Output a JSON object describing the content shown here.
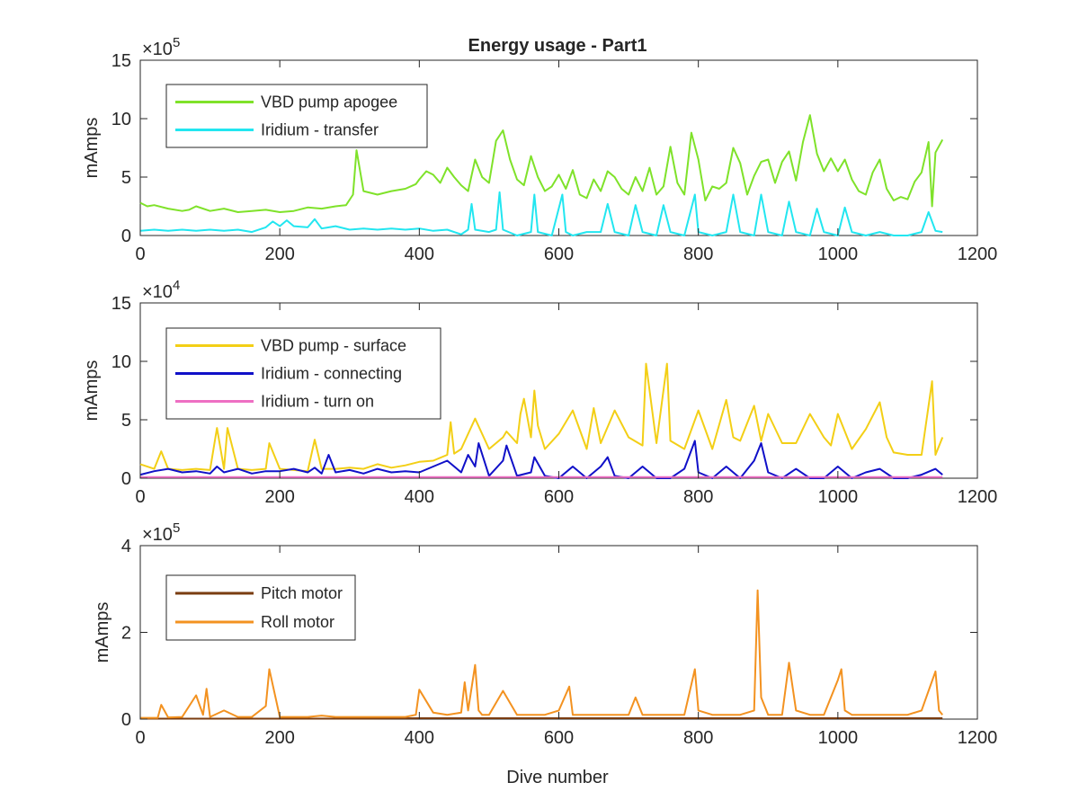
{
  "figure": {
    "title": "Energy usage - Part1",
    "xlabel": "Dive number"
  },
  "chart_data": [
    {
      "type": "line",
      "title": "Energy usage - Part1",
      "ylabel": "mAmps",
      "xlabel": "",
      "exponent_base": "×10",
      "exponent_power": "5",
      "xlim": [
        0,
        1200
      ],
      "ylim": [
        0,
        15
      ],
      "x_ticks": [
        "0",
        "200",
        "400",
        "600",
        "800",
        "1000",
        "1200"
      ],
      "y_ticks": [
        "0",
        "5",
        "10",
        "15"
      ],
      "grid": false,
      "legend_position": "top-left",
      "colors": [
        "#7fe22a",
        "#22e6f0"
      ],
      "series": [
        {
          "name": "VBD pump apogee",
          "color": "#7fe22a",
          "x": [
            0,
            10,
            20,
            40,
            60,
            70,
            80,
            100,
            120,
            140,
            160,
            180,
            200,
            220,
            240,
            260,
            280,
            295,
            305,
            310,
            320,
            340,
            360,
            380,
            395,
            400,
            410,
            420,
            430,
            440,
            450,
            460,
            470,
            480,
            490,
            500,
            510,
            520,
            530,
            540,
            550,
            560,
            570,
            580,
            590,
            600,
            610,
            620,
            630,
            640,
            650,
            660,
            670,
            680,
            690,
            700,
            710,
            720,
            730,
            740,
            750,
            760,
            770,
            780,
            790,
            800,
            810,
            820,
            830,
            840,
            850,
            860,
            870,
            880,
            890,
            900,
            910,
            920,
            930,
            940,
            950,
            960,
            970,
            980,
            990,
            1000,
            1010,
            1020,
            1030,
            1040,
            1050,
            1060,
            1070,
            1080,
            1090,
            1100,
            1110,
            1120,
            1130,
            1135,
            1140,
            1150
          ],
          "values": [
            2.8,
            2.5,
            2.6,
            2.3,
            2.1,
            2.2,
            2.5,
            2.1,
            2.3,
            2.0,
            2.1,
            2.2,
            2.0,
            2.1,
            2.4,
            2.3,
            2.5,
            2.6,
            3.5,
            7.3,
            3.8,
            3.5,
            3.8,
            4.0,
            4.4,
            4.8,
            5.5,
            5.2,
            4.5,
            5.8,
            5.0,
            4.3,
            3.8,
            6.5,
            5.0,
            4.5,
            8.1,
            9.0,
            6.5,
            4.8,
            4.3,
            6.8,
            5.0,
            3.8,
            4.2,
            5.2,
            4.0,
            5.6,
            3.5,
            3.2,
            4.8,
            3.8,
            5.5,
            5.0,
            4.0,
            3.5,
            5.0,
            3.8,
            5.8,
            3.5,
            4.2,
            7.6,
            4.5,
            3.5,
            8.8,
            6.5,
            3.0,
            4.2,
            4.0,
            4.5,
            7.5,
            6.2,
            3.5,
            5.1,
            6.3,
            6.5,
            4.5,
            6.3,
            7.2,
            4.7,
            8.0,
            10.3,
            7.0,
            5.5,
            6.6,
            5.5,
            6.5,
            4.8,
            3.8,
            3.5,
            5.4,
            6.5,
            4.0,
            3.0,
            3.3,
            3.1,
            4.6,
            5.4,
            8.0,
            2.5,
            7.1,
            8.2
          ]
        },
        {
          "name": "Iridium - transfer",
          "color": "#22e6f0",
          "x": [
            0,
            20,
            40,
            60,
            80,
            100,
            120,
            140,
            160,
            180,
            190,
            200,
            210,
            220,
            240,
            250,
            260,
            280,
            300,
            320,
            340,
            360,
            380,
            400,
            420,
            440,
            460,
            470,
            475,
            480,
            500,
            510,
            515,
            520,
            540,
            560,
            565,
            570,
            590,
            605,
            610,
            620,
            640,
            660,
            670,
            680,
            700,
            710,
            720,
            740,
            750,
            760,
            780,
            795,
            800,
            820,
            840,
            850,
            860,
            880,
            890,
            900,
            920,
            930,
            940,
            960,
            970,
            980,
            1000,
            1010,
            1020,
            1040,
            1060,
            1080,
            1100,
            1120,
            1130,
            1140,
            1150
          ],
          "values": [
            0.4,
            0.5,
            0.4,
            0.5,
            0.4,
            0.5,
            0.4,
            0.5,
            0.3,
            0.7,
            1.2,
            0.8,
            1.3,
            0.8,
            0.7,
            1.4,
            0.6,
            0.8,
            0.5,
            0.6,
            0.5,
            0.6,
            0.5,
            0.6,
            0.4,
            0.5,
            0.1,
            0.5,
            2.7,
            0.5,
            0.3,
            0.5,
            3.7,
            0.5,
            0.0,
            0.3,
            3.5,
            0.3,
            0.0,
            3.5,
            0.3,
            0.0,
            0.3,
            0.3,
            2.7,
            0.3,
            0.0,
            2.6,
            0.3,
            0.0,
            2.6,
            0.3,
            0.0,
            3.5,
            0.3,
            0.0,
            0.3,
            3.5,
            0.3,
            0.0,
            3.5,
            0.3,
            0.0,
            2.9,
            0.3,
            0.0,
            2.3,
            0.3,
            0.0,
            2.4,
            0.3,
            0.0,
            0.3,
            0.0,
            0.0,
            0.3,
            2.0,
            0.4,
            0.3
          ]
        }
      ]
    },
    {
      "type": "line",
      "title": "",
      "ylabel": "mAmps",
      "xlabel": "",
      "exponent_base": "×10",
      "exponent_power": "4",
      "xlim": [
        0,
        1200
      ],
      "ylim": [
        0,
        15
      ],
      "x_ticks": [
        "0",
        "200",
        "400",
        "600",
        "800",
        "1000",
        "1200"
      ],
      "y_ticks": [
        "0",
        "5",
        "10",
        "15"
      ],
      "grid": false,
      "legend_position": "top-left",
      "colors": [
        "#f3cf16",
        "#1010c8",
        "#ee6fc3"
      ],
      "series": [
        {
          "name": "VBD pump - surface",
          "color": "#f3cf16",
          "x": [
            0,
            20,
            30,
            40,
            60,
            80,
            100,
            110,
            120,
            125,
            140,
            160,
            180,
            185,
            200,
            220,
            240,
            250,
            260,
            280,
            300,
            320,
            340,
            360,
            380,
            400,
            420,
            440,
            445,
            450,
            460,
            480,
            500,
            520,
            525,
            540,
            545,
            550,
            560,
            565,
            570,
            580,
            600,
            620,
            640,
            650,
            660,
            680,
            700,
            720,
            725,
            740,
            755,
            760,
            780,
            800,
            820,
            840,
            850,
            860,
            880,
            890,
            900,
            920,
            940,
            960,
            980,
            990,
            1000,
            1020,
            1040,
            1060,
            1070,
            1080,
            1100,
            1120,
            1135,
            1140,
            1150
          ],
          "values": [
            1.2,
            0.8,
            2.3,
            0.8,
            0.7,
            0.8,
            0.7,
            4.3,
            0.8,
            4.3,
            0.8,
            0.7,
            0.8,
            3.0,
            0.8,
            0.7,
            0.6,
            3.3,
            0.8,
            0.8,
            0.9,
            0.8,
            1.2,
            0.9,
            1.1,
            1.4,
            1.5,
            2.0,
            4.8,
            2.1,
            2.5,
            5.1,
            2.5,
            3.5,
            4.0,
            3.0,
            5.5,
            6.8,
            3.5,
            7.5,
            4.5,
            2.5,
            3.8,
            5.8,
            2.5,
            6.0,
            3.0,
            5.8,
            3.5,
            2.8,
            9.8,
            3.0,
            9.8,
            3.2,
            2.5,
            5.8,
            2.5,
            6.7,
            3.5,
            3.2,
            6.2,
            3.2,
            5.5,
            3.0,
            3.0,
            5.5,
            3.5,
            2.8,
            5.5,
            2.5,
            4.2,
            6.5,
            3.5,
            2.2,
            2.0,
            2.0,
            8.3,
            2.0,
            3.5
          ]
        },
        {
          "name": "Iridium - connecting",
          "color": "#1010c8",
          "x": [
            0,
            20,
            40,
            60,
            80,
            100,
            110,
            120,
            140,
            160,
            180,
            200,
            220,
            240,
            250,
            260,
            270,
            280,
            300,
            320,
            340,
            360,
            380,
            400,
            420,
            440,
            460,
            470,
            480,
            485,
            500,
            520,
            525,
            540,
            560,
            565,
            580,
            600,
            620,
            640,
            660,
            670,
            680,
            700,
            720,
            740,
            760,
            780,
            795,
            800,
            820,
            840,
            860,
            880,
            890,
            900,
            920,
            940,
            960,
            980,
            1000,
            1020,
            1040,
            1060,
            1080,
            1100,
            1120,
            1140,
            1150
          ],
          "values": [
            0.3,
            0.6,
            0.8,
            0.5,
            0.6,
            0.4,
            1.0,
            0.5,
            0.8,
            0.4,
            0.6,
            0.6,
            0.8,
            0.5,
            0.9,
            0.4,
            2.0,
            0.5,
            0.7,
            0.4,
            0.8,
            0.5,
            0.6,
            0.5,
            1.0,
            1.5,
            0.5,
            2.0,
            1.0,
            3.0,
            0.2,
            1.5,
            2.8,
            0.2,
            0.5,
            1.8,
            0.2,
            0.0,
            1.0,
            0.0,
            1.0,
            1.8,
            0.2,
            0.0,
            1.0,
            0.0,
            0.0,
            0.8,
            3.2,
            0.5,
            0.0,
            1.0,
            0.0,
            1.5,
            3.0,
            0.5,
            0.0,
            0.8,
            0.0,
            0.0,
            1.0,
            0.0,
            0.5,
            0.8,
            0.0,
            0.0,
            0.3,
            0.8,
            0.3
          ]
        },
        {
          "name": "Iridium - turn on",
          "color": "#ee6fc3",
          "x": [
            0,
            100,
            200,
            300,
            400,
            500,
            600,
            700,
            800,
            900,
            1000,
            1100,
            1150
          ],
          "values": [
            0.1,
            0.1,
            0.1,
            0.1,
            0.1,
            0.1,
            0.1,
            0.1,
            0.1,
            0.1,
            0.1,
            0.1,
            0.1
          ]
        }
      ]
    },
    {
      "type": "line",
      "title": "",
      "ylabel": "mAmps",
      "xlabel": "Dive number",
      "exponent_base": "×10",
      "exponent_power": "5",
      "xlim": [
        0,
        1200
      ],
      "ylim": [
        0,
        4
      ],
      "x_ticks": [
        "0",
        "200",
        "400",
        "600",
        "800",
        "1000",
        "1200"
      ],
      "y_ticks": [
        "0",
        "2",
        "4"
      ],
      "grid": false,
      "legend_position": "top-left",
      "colors": [
        "#7a3c10",
        "#f39220"
      ],
      "series": [
        {
          "name": "Pitch motor",
          "color": "#7a3c10",
          "x": [
            0,
            100,
            200,
            300,
            400,
            500,
            600,
            700,
            800,
            900,
            1000,
            1100,
            1150
          ],
          "values": [
            0.01,
            0.01,
            0.01,
            0.01,
            0.02,
            0.02,
            0.02,
            0.02,
            0.02,
            0.02,
            0.02,
            0.02,
            0.02
          ]
        },
        {
          "name": "Roll motor",
          "color": "#f39220",
          "x": [
            0,
            25,
            30,
            40,
            60,
            80,
            90,
            95,
            100,
            120,
            140,
            160,
            180,
            185,
            200,
            220,
            240,
            260,
            280,
            300,
            320,
            340,
            360,
            380,
            395,
            400,
            420,
            440,
            460,
            465,
            470,
            480,
            485,
            490,
            500,
            520,
            540,
            560,
            580,
            600,
            615,
            620,
            640,
            660,
            680,
            700,
            710,
            720,
            740,
            760,
            780,
            795,
            800,
            820,
            840,
            860,
            880,
            885,
            890,
            900,
            920,
            930,
            940,
            960,
            980,
            1000,
            1005,
            1010,
            1020,
            1040,
            1060,
            1080,
            1100,
            1120,
            1140,
            1145,
            1150
          ],
          "values": [
            0.03,
            0.03,
            0.33,
            0.04,
            0.05,
            0.55,
            0.1,
            0.7,
            0.05,
            0.2,
            0.05,
            0.05,
            0.3,
            1.15,
            0.05,
            0.05,
            0.05,
            0.08,
            0.05,
            0.05,
            0.05,
            0.05,
            0.05,
            0.05,
            0.1,
            0.68,
            0.15,
            0.1,
            0.15,
            0.85,
            0.2,
            1.25,
            0.2,
            0.1,
            0.1,
            0.65,
            0.1,
            0.1,
            0.1,
            0.2,
            0.75,
            0.1,
            0.1,
            0.1,
            0.1,
            0.1,
            0.5,
            0.1,
            0.1,
            0.1,
            0.1,
            1.15,
            0.2,
            0.1,
            0.1,
            0.1,
            0.2,
            2.97,
            0.5,
            0.1,
            0.1,
            1.3,
            0.2,
            0.1,
            0.1,
            0.9,
            1.15,
            0.2,
            0.1,
            0.1,
            0.1,
            0.1,
            0.1,
            0.2,
            1.1,
            0.2,
            0.1
          ]
        }
      ]
    }
  ]
}
